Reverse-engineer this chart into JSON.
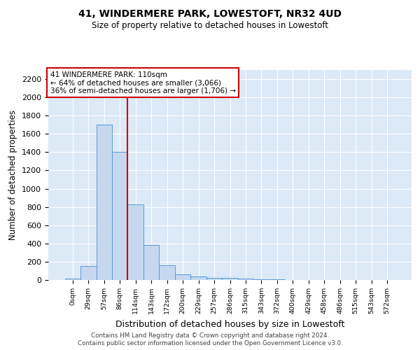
{
  "title": "41, WINDERMERE PARK, LOWESTOFT, NR32 4UD",
  "subtitle": "Size of property relative to detached houses in Lowestoft",
  "xlabel": "Distribution of detached houses by size in Lowestoft",
  "ylabel": "Number of detached properties",
  "bar_labels": [
    "0sqm",
    "29sqm",
    "57sqm",
    "86sqm",
    "114sqm",
    "143sqm",
    "172sqm",
    "200sqm",
    "229sqm",
    "257sqm",
    "286sqm",
    "315sqm",
    "343sqm",
    "372sqm",
    "400sqm",
    "429sqm",
    "458sqm",
    "486sqm",
    "515sqm",
    "543sqm",
    "572sqm"
  ],
  "bar_values": [
    15,
    150,
    1700,
    1400,
    830,
    380,
    160,
    65,
    35,
    25,
    20,
    15,
    10,
    5,
    0,
    0,
    0,
    0,
    0,
    0,
    0
  ],
  "bar_color": "#c5d8f0",
  "bar_edge_color": "#5b9bd5",
  "vline_color": "#cc0000",
  "ylim": [
    0,
    2300
  ],
  "yticks": [
    0,
    200,
    400,
    600,
    800,
    1000,
    1200,
    1400,
    1600,
    1800,
    2000,
    2200
  ],
  "annotation_line1": "41 WINDERMERE PARK: 110sqm",
  "annotation_line2": "← 64% of detached houses are smaller (3,066)",
  "annotation_line3": "36% of semi-detached houses are larger (1,706) →",
  "annotation_box_color": "#ffffff",
  "annotation_box_edge": "#cc0000",
  "footer1": "Contains HM Land Registry data © Crown copyright and database right 2024.",
  "footer2": "Contains public sector information licensed under the Open Government Licence v3.0.",
  "background_color": "#dce9f7",
  "figure_bg": "#ffffff",
  "grid_color": "#ffffff",
  "vline_bin_index": 3.5
}
